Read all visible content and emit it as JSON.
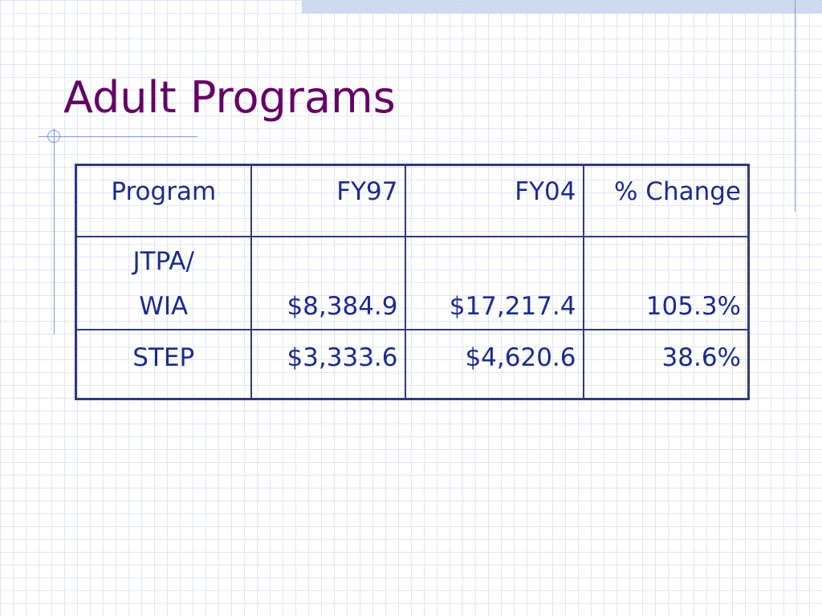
{
  "slide": {
    "title": "Adult Programs"
  },
  "table": {
    "headers": [
      "Program",
      "FY97",
      "FY04",
      "% Change"
    ],
    "rows": [
      {
        "program_line1": "JTPA/",
        "program_line2": "WIA",
        "fy97": "$8,384.9",
        "fy04": "$17,217.4",
        "change": "105.3%"
      },
      {
        "program": "STEP",
        "fy97": "$3,333.6",
        "fy04": "$4,620.6",
        "change": "38.6%"
      }
    ]
  },
  "colors": {
    "title": "#660066",
    "text": "#1a2b8e",
    "table_border": "#2e3a80",
    "grid": "#dfe5f2",
    "accent_line": "#7f96cc"
  }
}
